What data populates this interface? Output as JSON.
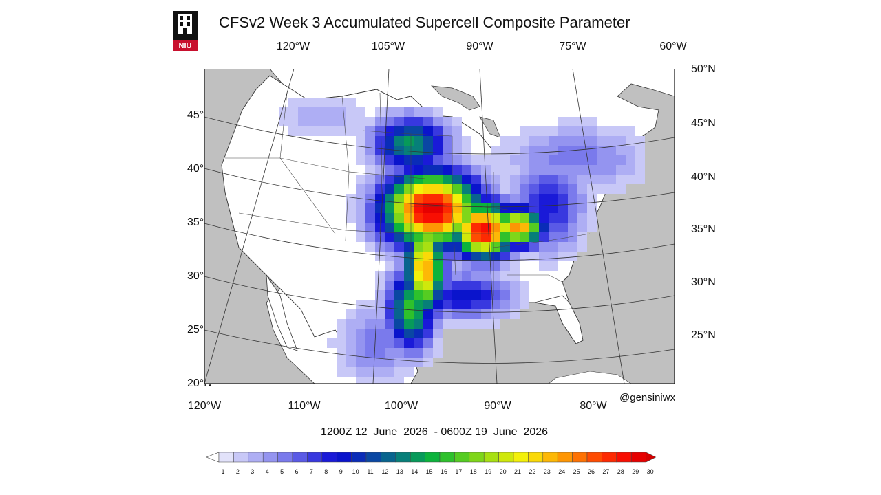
{
  "title": "CFSv2 Week 3 Accumulated Supercell Composite Parameter",
  "credit": "@gensiniwx",
  "period": "1200Z 12  June  2026  - 0600Z 19  June  2026",
  "logo": {
    "text": "NIU",
    "color": "#c8102e"
  },
  "top_lon_labels": [
    "120°W",
    "105°W",
    "90°W",
    "75°W",
    "60°W"
  ],
  "bottom_lon_labels": [
    "120°W",
    "110°W",
    "100°W",
    "90°W",
    "80°W"
  ],
  "left_lat_labels": [
    "45°N",
    "40°N",
    "35°N",
    "30°N",
    "25°N",
    "20°N"
  ],
  "right_lat_labels": [
    "50°N",
    "45°N",
    "40°N",
    "35°N",
    "30°N",
    "25°N"
  ],
  "colorbar": {
    "labels": [
      "1",
      "2",
      "3",
      "4",
      "5",
      "6",
      "7",
      "8",
      "9",
      "10",
      "11",
      "12",
      "13",
      "14",
      "15",
      "16",
      "17",
      "18",
      "19",
      "20",
      "21",
      "22",
      "23",
      "24",
      "25",
      "26",
      "27",
      "28",
      "29",
      "30"
    ],
    "colors": [
      "#ffffff",
      "#e2e2fa",
      "#c8c8f7",
      "#aeaef4",
      "#9494f0",
      "#7a7aec",
      "#5a5ae6",
      "#3838df",
      "#1a1ad8",
      "#0a14cc",
      "#0a2cb8",
      "#0a47a3",
      "#08648e",
      "#077f79",
      "#079a5a",
      "#0cb33c",
      "#2ec12c",
      "#55cc22",
      "#7fd61a",
      "#a8e012",
      "#cfe80c",
      "#f3f00a",
      "#fad908",
      "#fdb806",
      "#fe9604",
      "#fe7203",
      "#fe4c02",
      "#fd2a02",
      "#f80e02",
      "#e60000",
      "#d40000"
    ]
  },
  "map": {
    "lon_range": [
      -125,
      -60
    ],
    "lat_range": [
      20,
      50
    ],
    "ocean_color": "#c0c0c0",
    "land_color": "#ffffff"
  }
}
